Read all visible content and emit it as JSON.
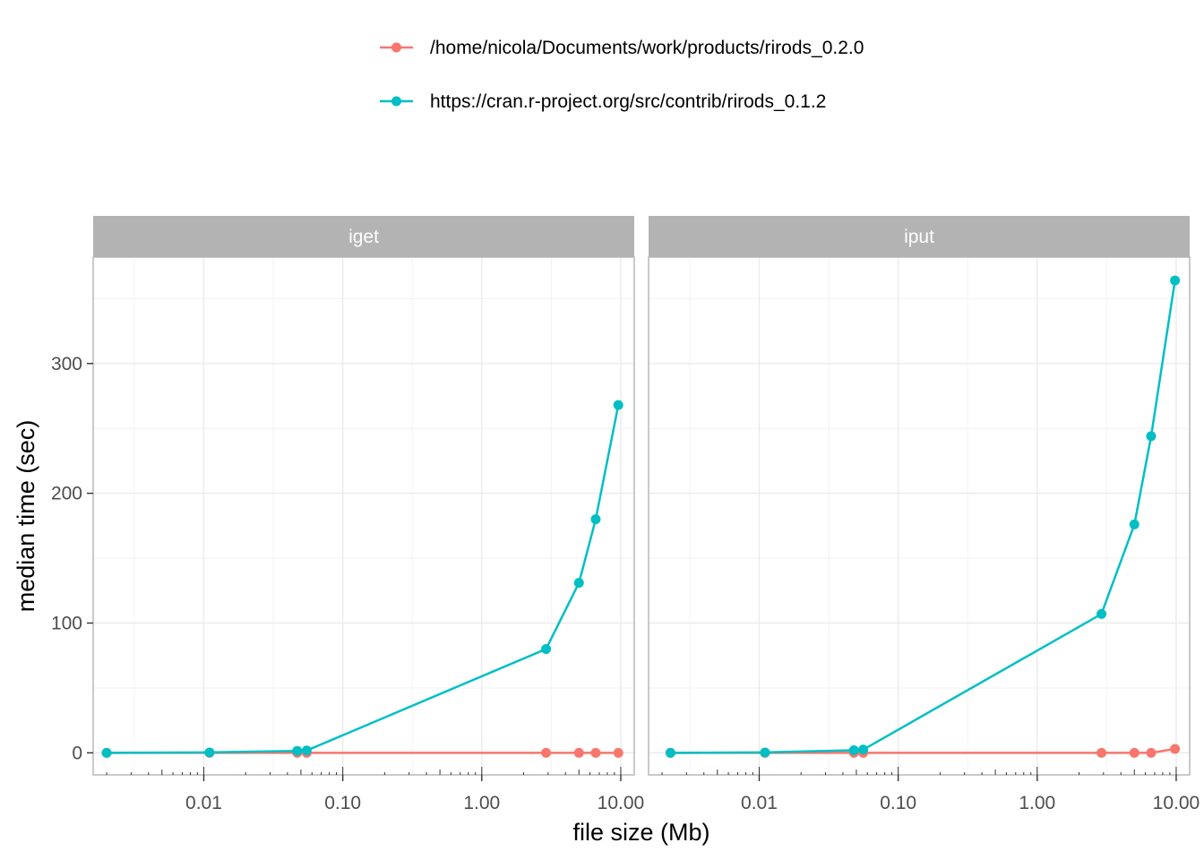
{
  "chart_data": {
    "type": "line",
    "xlabel": "file size (Mb)",
    "ylabel": "median time (sec)",
    "x_scale": "log10",
    "xlim": [
      0.0016,
      12.5
    ],
    "ylim": [
      -17,
      382
    ],
    "x_ticks": [
      0.01,
      0.1,
      1,
      10
    ],
    "x_tick_labels": [
      "0.01",
      "0.10",
      "1.00",
      "10.00"
    ],
    "y_ticks": [
      0,
      100,
      200,
      300
    ],
    "y_tick_labels": [
      "0",
      "100",
      "200",
      "300"
    ],
    "grid": true,
    "legend_position": "top",
    "colors": {
      "/home/nicola/Documents/work/products/rirods_0.2.0": "#F8766D",
      "https://cran.r-project.org/src/contrib/rirods_0.1.2": "#00BFC4",
      "strip_background": "#B3B3B3",
      "grid_line": "#EBEBEB",
      "panel_border": "#B3B3B3"
    },
    "panels": [
      {
        "name": "iget",
        "series": [
          {
            "name": "/home/nicola/Documents/work/products/rirods_0.2.0",
            "x": [
              0.002,
              0.011,
              0.047,
              0.055,
              2.9,
              5.0,
              6.6,
              9.6
            ],
            "y": [
              0,
              0,
              0,
              0,
              0,
              0,
              0,
              0
            ]
          },
          {
            "name": "https://cran.r-project.org/src/contrib/rirods_0.1.2",
            "x": [
              0.002,
              0.011,
              0.047,
              0.055,
              2.9,
              5.0,
              6.6,
              9.6
            ],
            "y": [
              0,
              0.3,
              1.5,
              1.8,
              80,
              131,
              180,
              268
            ]
          }
        ]
      },
      {
        "name": "iput",
        "series": [
          {
            "name": "/home/nicola/Documents/work/products/rirods_0.2.0",
            "x": [
              0.0023,
              0.011,
              0.048,
              0.056,
              2.9,
              5.0,
              6.6,
              9.8
            ],
            "y": [
              0,
              0,
              0,
              0,
              0,
              0,
              0,
              3
            ]
          },
          {
            "name": "https://cran.r-project.org/src/contrib/rirods_0.1.2",
            "x": [
              0.0023,
              0.011,
              0.048,
              0.056,
              2.9,
              5.0,
              6.6,
              9.8
            ],
            "y": [
              0,
              0.3,
              2,
              2.5,
              107,
              176,
              244,
              364
            ]
          }
        ]
      }
    ]
  }
}
